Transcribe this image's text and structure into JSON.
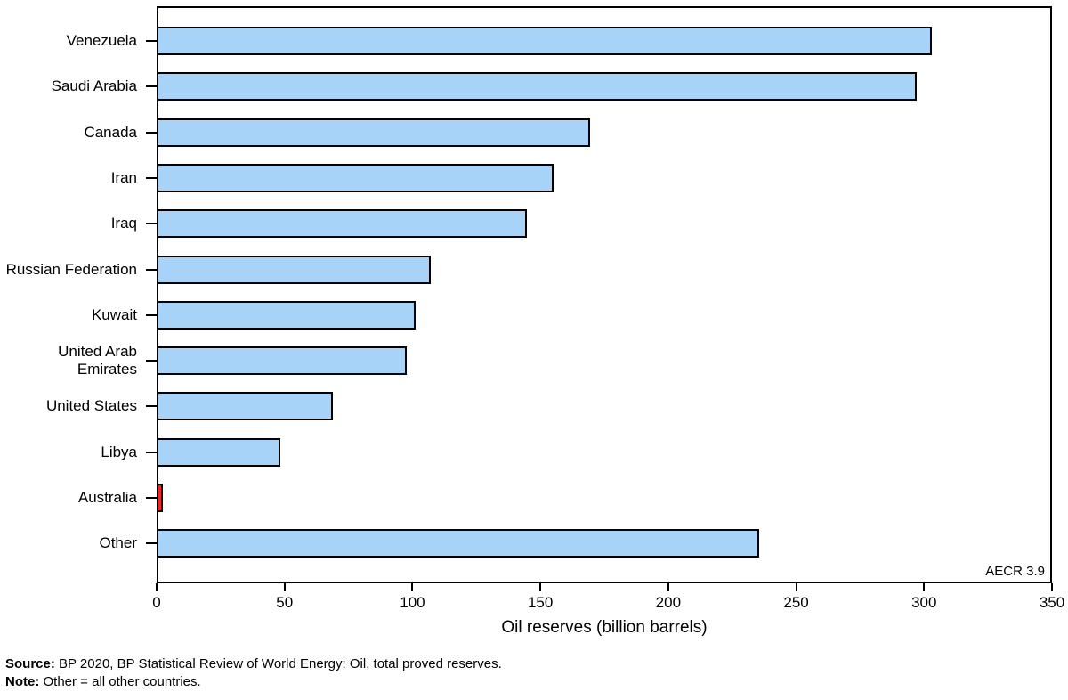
{
  "chart_data": {
    "type": "bar",
    "orientation": "horizontal",
    "title": "",
    "xlabel": "Oil reserves (billion barrels)",
    "ylabel": "",
    "xlim": [
      0,
      350
    ],
    "x_ticks": [
      0,
      50,
      100,
      150,
      200,
      250,
      300,
      350
    ],
    "grid": false,
    "legend": "none",
    "annotation": "AECR 3.9",
    "categories": [
      "Venezuela",
      "Saudi Arabia",
      "Canada",
      "Iran",
      "Iraq",
      "Russian Federation",
      "Kuwait",
      "United Arab Emirates",
      "United States",
      "Libya",
      "Australia",
      "Other"
    ],
    "display_labels": [
      "Venezuela",
      "Saudi Arabia",
      "Canada",
      "Iran",
      "Iraq",
      "Russian Federation",
      "Kuwait",
      "United Arab\nEmirates",
      "United States",
      "Libya",
      "Australia",
      "Other"
    ],
    "values": [
      303.8,
      297.6,
      169.7,
      155.6,
      145.0,
      107.2,
      101.5,
      97.8,
      68.9,
      48.4,
      2.4,
      236.0
    ],
    "highlight_category": "Australia",
    "colors": {
      "bar_fill": "#a6d3f7",
      "bar_border": "#000000",
      "highlight_fill": "#f5261e",
      "axis": "#000000"
    }
  },
  "footer": {
    "source_label": "Source:",
    "source_text": " BP 2020, BP Statistical Review of World Energy: Oil, total proved reserves.",
    "note_label": "Note:",
    "note_text": " Other = all other countries."
  }
}
